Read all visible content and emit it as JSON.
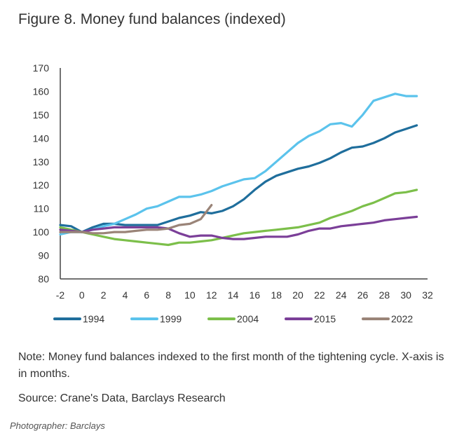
{
  "header": {
    "title": "Figure 8. Money fund balances (indexed)"
  },
  "note": "Note: Money fund balances indexed to the first month of the tightening cycle. X-axis is in months.",
  "source": "Source: Crane's Data, Barclays Research",
  "credit": "Photographer: Barclays",
  "chart_data": {
    "type": "line",
    "title": "Figure 8. Money fund balances (indexed)",
    "xlabel": "",
    "ylabel": "",
    "xlim": [
      -2,
      32
    ],
    "ylim": [
      80,
      170
    ],
    "xticks": [
      -2,
      0,
      2,
      4,
      6,
      8,
      10,
      12,
      14,
      16,
      18,
      20,
      22,
      24,
      26,
      28,
      30,
      32
    ],
    "yticks": [
      80,
      90,
      100,
      110,
      120,
      130,
      140,
      150,
      160,
      170
    ],
    "legend_position": "bottom",
    "grid": false,
    "series": [
      {
        "name": "1994",
        "color": "#1f6e9c",
        "x": [
          -2,
          -1,
          0,
          1,
          2,
          3,
          4,
          5,
          6,
          7,
          8,
          9,
          10,
          11,
          12,
          13,
          14,
          15,
          16,
          17,
          18,
          19,
          20,
          21,
          22,
          23,
          24,
          25,
          26,
          27,
          28,
          29,
          30,
          31
        ],
        "y": [
          103,
          102.5,
          100,
          102,
          103.5,
          103.5,
          103,
          103,
          103,
          103,
          104.5,
          106,
          107,
          108.5,
          108,
          109,
          111,
          114,
          118,
          121.5,
          124,
          125.5,
          127,
          128,
          129.5,
          131.5,
          134,
          136,
          136.5,
          138,
          140,
          142.5,
          144,
          145.5
        ]
      },
      {
        "name": "1999",
        "color": "#5bc3ec",
        "x": [
          -2,
          -1,
          0,
          1,
          2,
          3,
          4,
          5,
          6,
          7,
          8,
          9,
          10,
          11,
          12,
          13,
          14,
          15,
          16,
          17,
          18,
          19,
          20,
          21,
          22,
          23,
          24,
          25,
          26,
          27,
          28,
          29,
          30,
          31
        ],
        "y": [
          99,
          100,
          100,
          101,
          102.5,
          103.5,
          105.5,
          107.5,
          110,
          111,
          113,
          115,
          115,
          116,
          117.5,
          119.5,
          121,
          122.5,
          123,
          126,
          130,
          134,
          138,
          141,
          143,
          146,
          146.5,
          145,
          150,
          156,
          157.5,
          159,
          158,
          158
        ]
      },
      {
        "name": "2004",
        "color": "#7cbf4a",
        "x": [
          -2,
          -1,
          0,
          1,
          2,
          3,
          4,
          5,
          6,
          7,
          8,
          9,
          10,
          11,
          12,
          13,
          14,
          15,
          16,
          17,
          18,
          19,
          20,
          21,
          22,
          23,
          24,
          25,
          26,
          27,
          28,
          29,
          30,
          31
        ],
        "y": [
          102,
          101,
          100,
          99,
          98,
          97,
          96.5,
          96,
          95.5,
          95,
          94.5,
          95.5,
          95.5,
          96,
          96.5,
          97.5,
          98.5,
          99.5,
          100,
          100.5,
          101,
          101.5,
          102,
          103,
          104,
          106,
          107.5,
          109,
          111,
          112.5,
          114.5,
          116.5,
          117,
          118
        ]
      },
      {
        "name": "2015",
        "color": "#7b3f98",
        "x": [
          -2,
          -1,
          0,
          1,
          2,
          3,
          4,
          5,
          6,
          7,
          8,
          9,
          10,
          11,
          12,
          13,
          14,
          15,
          16,
          17,
          18,
          19,
          20,
          21,
          22,
          23,
          24,
          25,
          26,
          27,
          28,
          29,
          30,
          31
        ],
        "y": [
          101,
          100.5,
          100,
          101,
          101.5,
          102,
          102,
          102,
          102,
          102,
          101.5,
          99.5,
          98,
          98.5,
          98.5,
          97.5,
          97,
          97,
          97.5,
          98,
          98,
          98,
          99,
          100.5,
          101.5,
          101.5,
          102.5,
          103,
          103.5,
          104,
          105,
          105.5,
          106,
          106.5
        ]
      },
      {
        "name": "2022",
        "color": "#9a8478",
        "x": [
          -2,
          -1,
          0,
          1,
          2,
          3,
          4,
          5,
          6,
          7,
          8,
          9,
          10,
          11,
          12
        ],
        "y": [
          100,
          100,
          100,
          99.5,
          99.5,
          100,
          100,
          100.5,
          101,
          101,
          101.5,
          103,
          103.5,
          105.5,
          111.5
        ]
      }
    ]
  }
}
